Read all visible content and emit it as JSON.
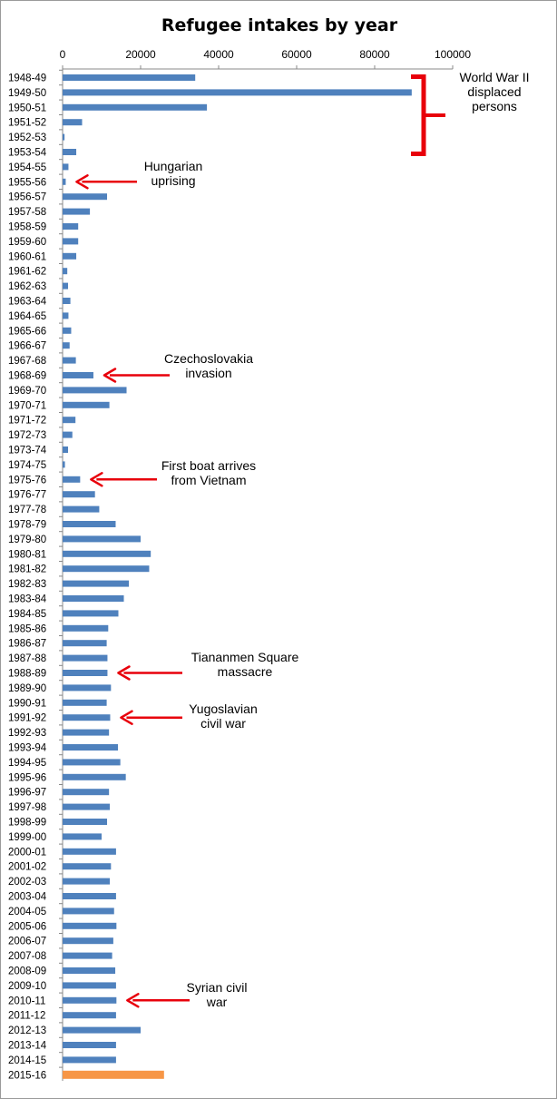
{
  "chart_data": {
    "type": "bar",
    "orientation": "horizontal",
    "title": "Refugee intakes by year",
    "xlabel": "",
    "ylabel": "",
    "xlim": [
      0,
      100000
    ],
    "x_ticks": [
      "0",
      "20000",
      "40000",
      "60000",
      "80000",
      "100000"
    ],
    "tick_position": "top",
    "grid": false,
    "colors": {
      "bar": "#4f81bd",
      "highlight": "#f79646",
      "arrow": "#e8000b"
    },
    "categories": [
      "1948-49",
      "1949-50",
      "1950-51",
      "1951-52",
      "1952-53",
      "1953-54",
      "1954-55",
      "1955-56",
      "1956-57",
      "1957-58",
      "1958-59",
      "1959-60",
      "1960-61",
      "1961-62",
      "1962-63",
      "1963-64",
      "1964-65",
      "1965-66",
      "1966-67",
      "1967-68",
      "1968-69",
      "1969-70",
      "1970-71",
      "1971-72",
      "1972-73",
      "1973-74",
      "1974-75",
      "1975-76",
      "1976-77",
      "1977-78",
      "1978-79",
      "1979-80",
      "1980-81",
      "1981-82",
      "1982-83",
      "1983-84",
      "1984-85",
      "1985-86",
      "1986-87",
      "1987-88",
      "1988-89",
      "1989-90",
      "1990-91",
      "1991-92",
      "1992-93",
      "1993-94",
      "1994-95",
      "1995-96",
      "1996-97",
      "1997-98",
      "1998-99",
      "1999-00",
      "2000-01",
      "2001-02",
      "2002-03",
      "2003-04",
      "2004-05",
      "2005-06",
      "2006-07",
      "2007-08",
      "2008-09",
      "2009-10",
      "2010-11",
      "2011-12",
      "2012-13",
      "2013-14",
      "2014-15",
      "2015-16"
    ],
    "values": [
      34000,
      89500,
      37000,
      5000,
      500,
      3500,
      1500,
      800,
      11400,
      7000,
      4000,
      4000,
      3500,
      1200,
      1400,
      2000,
      1500,
      2200,
      1800,
      3400,
      7900,
      16400,
      12000,
      3300,
      2500,
      1400,
      600,
      4500,
      8300,
      9400,
      13600,
      20000,
      22600,
      22200,
      17000,
      15700,
      14300,
      11700,
      11300,
      11500,
      11500,
      12400,
      11300,
      12200,
      11900,
      14200,
      14800,
      16200,
      11900,
      12100,
      11400,
      10000,
      13700,
      12400,
      12100,
      13700,
      13200,
      13800,
      13000,
      12700,
      13500,
      13700,
      13800,
      13700,
      20000,
      13700,
      13700,
      26000
    ],
    "highlight_index": 67,
    "annotations": [
      {
        "type": "bracket",
        "lines": [
          "World War II",
          "displaced",
          "persons"
        ],
        "from": "1948-49",
        "to": "1953-54"
      },
      {
        "type": "arrow",
        "lines": [
          "Hungarian",
          "uprising"
        ],
        "target": "1955-56"
      },
      {
        "type": "arrow",
        "lines": [
          "Czechoslovakia",
          "invasion"
        ],
        "target": "1968-69"
      },
      {
        "type": "arrow",
        "lines": [
          "First boat arrives",
          "from Vietnam"
        ],
        "target": "1975-76"
      },
      {
        "type": "arrow",
        "lines": [
          "Tiananmen Square",
          "massacre"
        ],
        "target": "1988-89"
      },
      {
        "type": "arrow",
        "lines": [
          "Yugoslavian",
          "civil war"
        ],
        "target": "1991-92"
      },
      {
        "type": "arrow",
        "lines": [
          "Syrian civil",
          "war"
        ],
        "target": "2010-11"
      }
    ]
  }
}
